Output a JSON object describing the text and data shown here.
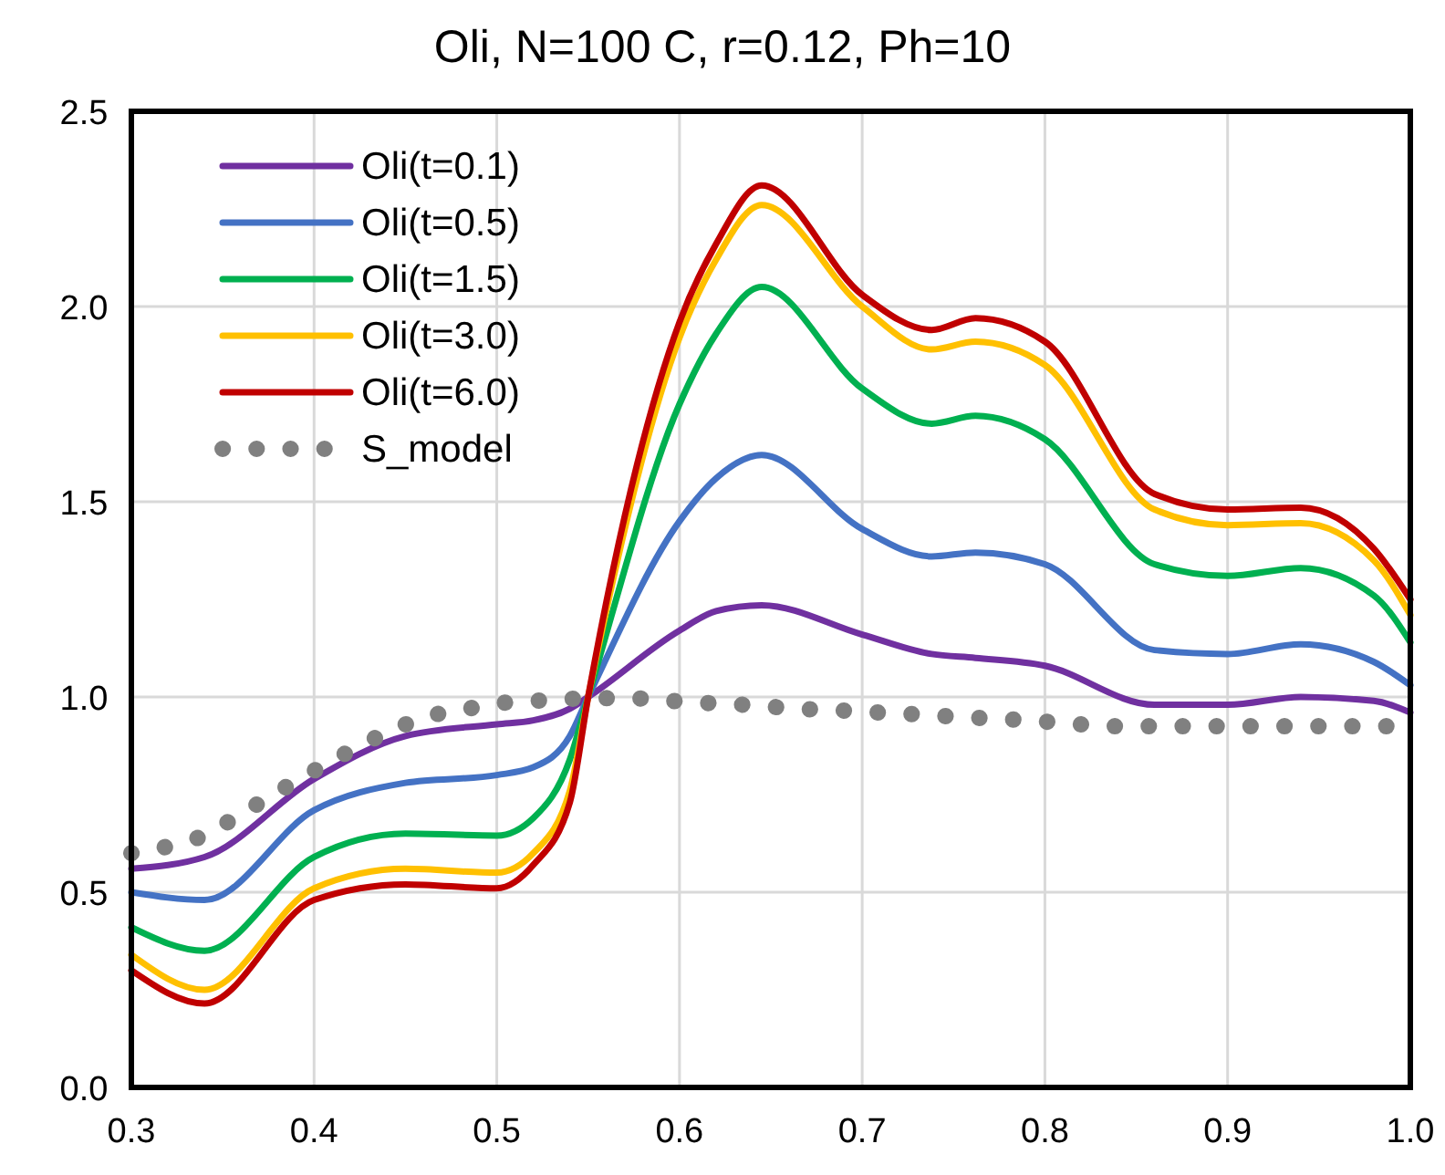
{
  "chart_data": {
    "type": "line",
    "title": "Oli, N=100 C, r=0.12, Ph=10",
    "x": [
      0.3,
      0.34,
      0.4,
      0.45,
      0.5,
      0.52,
      0.54,
      0.55,
      0.6,
      0.62,
      0.645,
      0.7,
      0.738,
      0.762,
      0.8,
      0.86,
      0.9,
      0.94,
      0.98,
      1.0
    ],
    "series": [
      {
        "name": "Oli(t=0.1)",
        "color": "#7030a0",
        "values": [
          0.56,
          0.59,
          0.79,
          0.9,
          0.93,
          0.94,
          0.97,
          1.0,
          1.17,
          1.22,
          1.235,
          1.16,
          1.11,
          1.1,
          1.08,
          0.98,
          0.98,
          1.0,
          0.99,
          0.96
        ]
      },
      {
        "name": "Oli(t=0.5)",
        "color": "#4472c4",
        "values": [
          0.5,
          0.48,
          0.71,
          0.78,
          0.8,
          0.82,
          0.9,
          1.0,
          1.45,
          1.56,
          1.62,
          1.43,
          1.36,
          1.37,
          1.34,
          1.12,
          1.11,
          1.135,
          1.09,
          1.03
        ]
      },
      {
        "name": "Oli(t=1.5)",
        "color": "#00b050",
        "values": [
          0.41,
          0.35,
          0.59,
          0.65,
          0.645,
          0.69,
          0.84,
          1.0,
          1.75,
          1.93,
          2.05,
          1.79,
          1.7,
          1.72,
          1.66,
          1.34,
          1.31,
          1.33,
          1.26,
          1.14
        ]
      },
      {
        "name": "Oli(t=3.0)",
        "color": "#ffc000",
        "values": [
          0.34,
          0.25,
          0.51,
          0.56,
          0.55,
          0.6,
          0.76,
          1.0,
          1.92,
          2.12,
          2.26,
          2.0,
          1.89,
          1.91,
          1.85,
          1.48,
          1.44,
          1.445,
          1.35,
          1.21
        ]
      },
      {
        "name": "Oli(t=6.0)",
        "color": "#c00000",
        "values": [
          0.3,
          0.215,
          0.48,
          0.52,
          0.51,
          0.57,
          0.73,
          1.0,
          1.96,
          2.16,
          2.31,
          2.03,
          1.94,
          1.97,
          1.91,
          1.52,
          1.48,
          1.485,
          1.38,
          1.25
        ]
      },
      {
        "name": "S_model",
        "color": "#808080",
        "line_style": "dotted",
        "x": [
          0.3,
          0.318,
          0.337,
          0.355,
          0.374,
          0.392,
          0.411,
          0.429,
          0.447,
          0.466,
          0.484,
          0.503,
          0.521,
          0.539,
          0.558,
          0.576,
          0.595,
          0.613,
          0.632,
          0.65,
          0.668,
          0.687,
          0.705,
          0.724,
          0.742,
          0.761,
          0.779,
          0.797,
          0.816,
          0.834,
          0.853,
          0.871,
          0.889,
          0.908,
          0.926,
          0.945,
          0.963,
          0.982,
          1.0
        ],
        "values": [
          0.6,
          0.615,
          0.64,
          0.685,
          0.74,
          0.79,
          0.84,
          0.885,
          0.925,
          0.955,
          0.97,
          0.985,
          0.99,
          0.995,
          0.997,
          0.997,
          0.99,
          0.985,
          0.981,
          0.975,
          0.969,
          0.966,
          0.961,
          0.957,
          0.952,
          0.947,
          0.943,
          0.938,
          0.931,
          0.925,
          0.925,
          0.925,
          0.925,
          0.925,
          0.925,
          0.925,
          0.925,
          0.925,
          0.925
        ]
      }
    ],
    "xlim": [
      0.3,
      1.0
    ],
    "xticks": [
      0.3,
      0.4,
      0.5,
      0.6,
      0.7,
      0.8,
      0.9,
      {
        "value": 1.0,
        "label": "1.0"
      }
    ],
    "ylim": [
      0,
      2.5
    ],
    "yticks": [
      {
        "value": 0,
        "label": "0.0"
      },
      0.5,
      {
        "value": 1,
        "label": "1.0"
      },
      1.5,
      {
        "value": 2,
        "label": "2.0"
      },
      2.5
    ],
    "grid": true,
    "legend": "top left",
    "line_style": "solid"
  }
}
